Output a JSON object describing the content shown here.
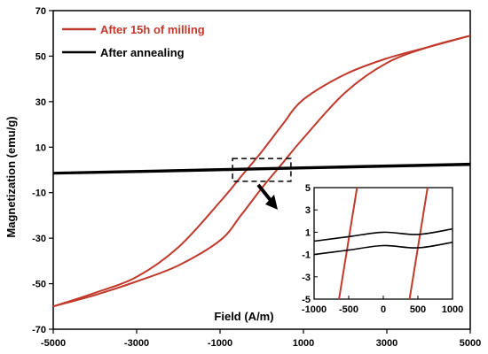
{
  "chart_data": [
    {
      "type": "line",
      "title": "",
      "xlabel": "",
      "ylabel": "Magnetization (emu/g)",
      "xlim": [
        -5000,
        5000
      ],
      "ylim": [
        -70,
        70
      ],
      "xticks": [
        -5000,
        -3000,
        -1000,
        1000,
        3000,
        5000
      ],
      "yticks": [
        -70,
        -50,
        -30,
        -10,
        10,
        30,
        50,
        70
      ],
      "grid": false,
      "legend_position": "top-left",
      "series": [
        {
          "name": "After 15h of milling",
          "color": "#c0392b",
          "branches": [
            {
              "x": [
                5000,
                4000,
                3000,
                2000,
                1000,
                500,
                0,
                -500,
                -1000,
                -2000,
                -3000,
                -4000,
                -5000
              ],
              "y": [
                59,
                54,
                49,
                42,
                31,
                20,
                8,
                -3,
                -14,
                -34,
                -47,
                -54,
                -60
              ]
            },
            {
              "x": [
                -5000,
                -4000,
                -3000,
                -2000,
                -1000,
                -500,
                0,
                500,
                1000,
                2000,
                3000,
                4000,
                5000
              ],
              "y": [
                -60,
                -55,
                -49,
                -42,
                -31,
                -20,
                -8,
                3,
                14,
                34,
                47,
                54,
                59
              ]
            }
          ]
        },
        {
          "name": "After annealing",
          "color": "#000000",
          "branches": [
            {
              "x": [
                -5000,
                -2500,
                0,
                2500,
                5000
              ],
              "y": [
                -1.3,
                -0.3,
                0.7,
                1.7,
                2.7
              ]
            },
            {
              "x": [
                -5000,
                -2500,
                0,
                2500,
                5000
              ],
              "y": [
                -1.6,
                -0.7,
                0.3,
                1.3,
                2.2
              ]
            }
          ]
        }
      ],
      "zoom_box": {
        "x": [
          -700,
          700
        ],
        "y": [
          -5,
          5
        ]
      }
    },
    {
      "type": "line",
      "title": "",
      "xlabel": "Field (A/m)",
      "ylabel": "",
      "xlim": [
        -1000,
        1000
      ],
      "ylim": [
        -5,
        5
      ],
      "xticks": [
        -1000,
        -500,
        0,
        500,
        1000
      ],
      "yticks": [
        5,
        3,
        1,
        -1,
        -3,
        -5
      ],
      "grid": false,
      "series": [
        {
          "name": "After 15h of milling",
          "color": "#c0392b",
          "branches": [
            {
              "x": [
                -640,
                -380
              ],
              "y": [
                -5,
                5
              ]
            },
            {
              "x": [
                380,
                640
              ],
              "y": [
                -5,
                5
              ]
            }
          ]
        },
        {
          "name": "After annealing",
          "color": "#000000",
          "branches": [
            {
              "x": [
                -1000,
                -500,
                0,
                500,
                1000
              ],
              "y": [
                0.2,
                0.6,
                1.0,
                0.8,
                1.3
              ]
            },
            {
              "x": [
                -1000,
                -500,
                0,
                500,
                1000
              ],
              "y": [
                -1.0,
                -0.6,
                -0.2,
                -0.4,
                0.1
              ]
            }
          ]
        }
      ]
    }
  ]
}
